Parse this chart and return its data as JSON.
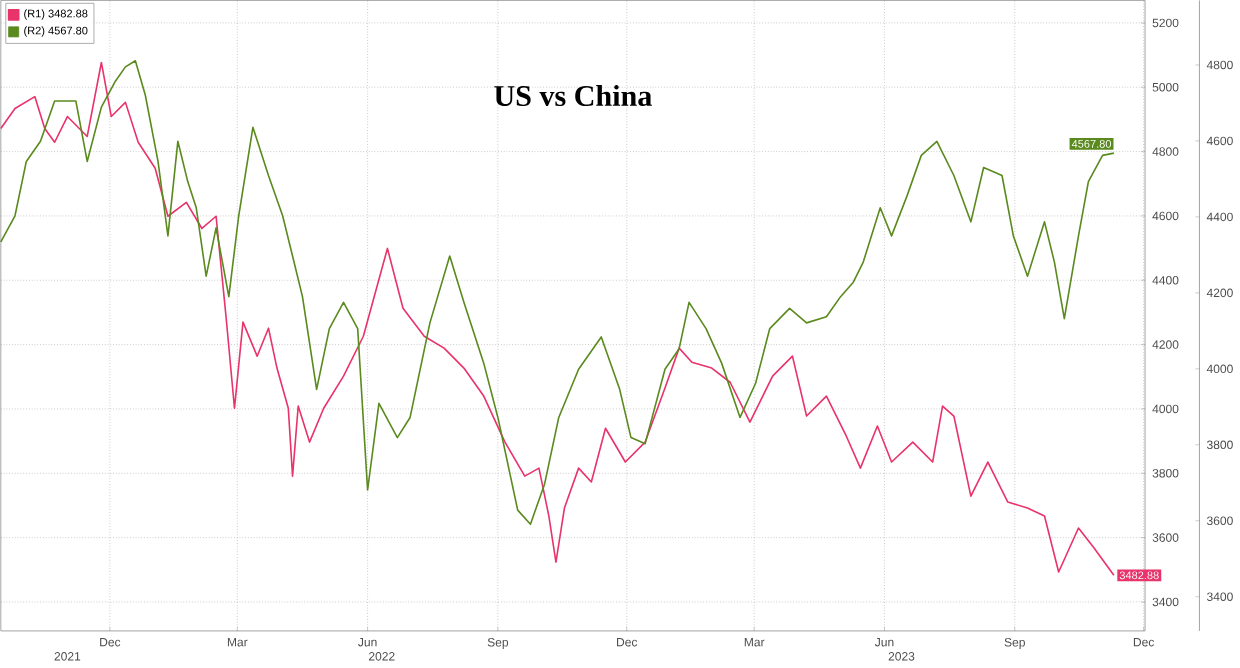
{
  "chart_data": {
    "type": "line",
    "title": "US vs China",
    "xlim": [
      "2021-09-15",
      "2023-12-02"
    ],
    "ylim": [
      3310,
      5270
    ],
    "y2lim": [
      3310,
      4970
    ],
    "xticks": [
      {
        "value": "2021-12-01",
        "label": "Dec"
      },
      {
        "value": "2022-03-01",
        "label": "Mar"
      },
      {
        "value": "2022-06-01",
        "label": "Jun"
      },
      {
        "value": "2022-09-01",
        "label": "Sep"
      },
      {
        "value": "2022-12-01",
        "label": "Dec"
      },
      {
        "value": "2023-03-01",
        "label": "Mar"
      },
      {
        "value": "2023-06-01",
        "label": "Jun"
      },
      {
        "value": "2023-09-01",
        "label": "Sep"
      },
      {
        "value": "2023-12-01",
        "label": "Dec"
      }
    ],
    "x2lim": [
      "2021-09-15",
      "2023-12-02"
    ],
    "x2ticks": [
      {
        "value": "2021-11-01",
        "label": "2021"
      },
      {
        "value": "2022-06-11",
        "label": "2022"
      },
      {
        "value": "2023-06-13",
        "label": "2023"
      }
    ],
    "yticks": [
      3400,
      3600,
      3800,
      4000,
      4200,
      4400,
      4600,
      4800,
      5000,
      5200
    ],
    "y2ticks": [
      3400,
      3600,
      3800,
      4000,
      4200,
      4400,
      4600,
      4800
    ],
    "grid": true,
    "legend": "top left",
    "marker": "none",
    "series": [
      {
        "name": "(R1) 3482.88",
        "color": "#e8336b",
        "x": [
          "2021-09-15",
          "2021-09-25",
          "2021-10-09",
          "2021-10-16",
          "2021-10-23",
          "2021-11-01",
          "2021-11-15",
          "2021-11-25",
          "2021-12-02",
          "2021-12-12",
          "2021-12-21",
          "2022-01-02",
          "2022-01-11",
          "2022-01-24",
          "2022-02-04",
          "2022-02-14",
          "2022-02-21",
          "2022-02-27",
          "2022-03-05",
          "2022-03-15",
          "2022-03-23",
          "2022-03-29",
          "2022-04-06",
          "2022-04-09",
          "2022-04-13",
          "2022-04-21",
          "2022-05-01",
          "2022-05-15",
          "2022-05-29",
          "2022-06-15",
          "2022-06-26",
          "2022-07-11",
          "2022-07-25",
          "2022-08-08",
          "2022-08-22",
          "2022-09-06",
          "2022-09-20",
          "2022-09-30",
          "2022-10-07",
          "2022-10-12",
          "2022-10-18",
          "2022-10-28",
          "2022-11-06",
          "2022-11-16",
          "2022-11-30",
          "2022-12-14",
          "2022-12-28",
          "2023-01-07",
          "2023-01-16",
          "2023-01-30",
          "2023-02-12",
          "2023-02-26",
          "2023-03-14",
          "2023-03-28",
          "2023-04-07",
          "2023-04-21",
          "2023-05-05",
          "2023-05-15",
          "2023-05-27",
          "2023-06-06",
          "2023-06-21",
          "2023-07-05",
          "2023-07-12",
          "2023-07-20",
          "2023-08-01",
          "2023-08-13",
          "2023-08-27",
          "2023-09-10",
          "2023-09-22",
          "2023-10-02",
          "2023-10-16",
          "2023-10-27",
          "2023-11-10"
        ],
        "values": [
          4872,
          4934,
          4971,
          4872,
          4829,
          4909,
          4847,
          5077,
          4909,
          4953,
          4829,
          4748,
          4599,
          4642,
          4561,
          4599,
          4288,
          4002,
          4270,
          4164,
          4251,
          4127,
          4002,
          3791,
          4009,
          3897,
          4002,
          4102,
          4226,
          4499,
          4313,
          4226,
          4189,
          4127,
          4040,
          3897,
          3791,
          3816,
          3667,
          3524,
          3692,
          3816,
          3773,
          3940,
          3835,
          3897,
          4065,
          4189,
          4145,
          4127,
          4083,
          3959,
          4102,
          4164,
          3978,
          4040,
          3916,
          3816,
          3947,
          3835,
          3897,
          3835,
          4009,
          3978,
          3729,
          3835,
          3711,
          3692,
          3667,
          3493,
          3630,
          3568,
          3482.88
        ],
        "value_labels": [
          null,
          null,
          null,
          null,
          null,
          null,
          null,
          null,
          null,
          null,
          null,
          null,
          null,
          null,
          null,
          null,
          null,
          null,
          null,
          null,
          null,
          null,
          null,
          null,
          null,
          null,
          null,
          null,
          null,
          null,
          null,
          null,
          null,
          null,
          null,
          null,
          null,
          null,
          null,
          null,
          null,
          null,
          null,
          null,
          null,
          null,
          null,
          null,
          null,
          null,
          null,
          null,
          null,
          null,
          null,
          null,
          null,
          null,
          null,
          null,
          null,
          null,
          null,
          null,
          null,
          null,
          null,
          null,
          null,
          null,
          null,
          null,
          "3482.88"
        ]
      },
      {
        "name": "(R2) 4567.80",
        "color": "#5a8a1e",
        "axis": "y2",
        "x": [
          "2021-09-15",
          "2021-09-25",
          "2021-10-03",
          "2021-10-13",
          "2021-10-23",
          "2021-11-07",
          "2021-11-15",
          "2021-11-25",
          "2021-12-05",
          "2021-12-12",
          "2021-12-19",
          "2021-12-26",
          "2022-01-04",
          "2022-01-11",
          "2022-01-18",
          "2022-01-25",
          "2022-01-31",
          "2022-02-07",
          "2022-02-14",
          "2022-02-23",
          "2022-03-02",
          "2022-03-12",
          "2022-03-23",
          "2022-04-02",
          "2022-04-09",
          "2022-04-16",
          "2022-04-26",
          "2022-05-05",
          "2022-05-15",
          "2022-05-25",
          "2022-06-01",
          "2022-06-09",
          "2022-06-22",
          "2022-07-01",
          "2022-07-15",
          "2022-07-29",
          "2022-08-08",
          "2022-08-22",
          "2022-09-01",
          "2022-09-15",
          "2022-09-24",
          "2022-10-04",
          "2022-10-14",
          "2022-10-28",
          "2022-11-13",
          "2022-11-26",
          "2022-12-04",
          "2022-12-14",
          "2022-12-28",
          "2023-01-07",
          "2023-01-14",
          "2023-01-26",
          "2023-02-06",
          "2023-02-19",
          "2023-03-02",
          "2023-03-12",
          "2023-03-26",
          "2023-04-07",
          "2023-04-21",
          "2023-05-01",
          "2023-05-10",
          "2023-05-17",
          "2023-05-29",
          "2023-06-06",
          "2023-06-17",
          "2023-06-27",
          "2023-07-08",
          "2023-07-20",
          "2023-08-01",
          "2023-08-10",
          "2023-08-23",
          "2023-08-31",
          "2023-09-10",
          "2023-09-22",
          "2023-09-29",
          "2023-10-06",
          "2023-10-16",
          "2023-10-23",
          "2023-11-02",
          "2023-11-10"
        ],
        "values": [
          4334,
          4403,
          4546,
          4599,
          4705,
          4705,
          4546,
          4689,
          4758,
          4795,
          4811,
          4721,
          4546,
          4350,
          4599,
          4493,
          4424,
          4244,
          4371,
          4190,
          4403,
          4636,
          4509,
          4403,
          4297,
          4190,
          3946,
          4106,
          4175,
          4106,
          3681,
          3909,
          3819,
          3872,
          4121,
          4297,
          4175,
          4015,
          3872,
          3628,
          3591,
          3697,
          3872,
          3999,
          4084,
          3946,
          3819,
          3803,
          3999,
          4053,
          4175,
          4106,
          4015,
          3872,
          3962,
          4106,
          4159,
          4121,
          4137,
          4190,
          4228,
          4281,
          4424,
          4350,
          4456,
          4562,
          4599,
          4509,
          4387,
          4530,
          4509,
          4350,
          4244,
          4387,
          4281,
          4132,
          4350,
          4493,
          4562,
          4567.8
        ],
        "value_labels": [
          null,
          null,
          null,
          null,
          null,
          null,
          null,
          null,
          null,
          null,
          null,
          null,
          null,
          null,
          null,
          null,
          null,
          null,
          null,
          null,
          null,
          null,
          null,
          null,
          null,
          null,
          null,
          null,
          null,
          null,
          null,
          null,
          null,
          null,
          null,
          null,
          null,
          null,
          null,
          null,
          null,
          null,
          null,
          null,
          null,
          null,
          null,
          null,
          null,
          null,
          null,
          null,
          null,
          null,
          null,
          null,
          null,
          null,
          null,
          null,
          null,
          null,
          null,
          null,
          null,
          null,
          null,
          null,
          null,
          null,
          null,
          null,
          null,
          null,
          null,
          null,
          null,
          null,
          null,
          "4567.80"
        ]
      }
    ]
  }
}
